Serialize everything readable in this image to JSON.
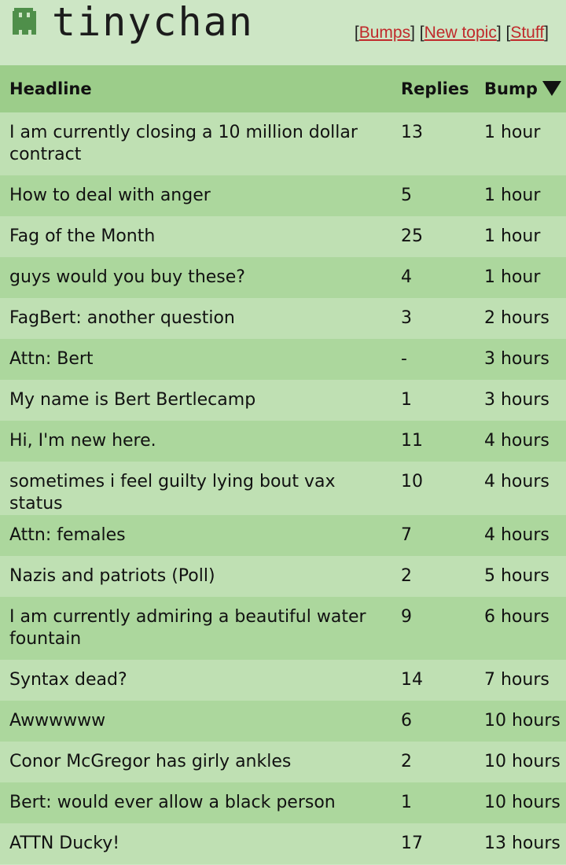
{
  "header": {
    "logo_text": "tinychan",
    "nav": [
      {
        "label": "Bumps"
      },
      {
        "label": "New topic"
      },
      {
        "label": "Stuff"
      }
    ]
  },
  "table": {
    "columns": {
      "headline": "Headline",
      "replies": "Replies",
      "bump": "Bump"
    },
    "rows": [
      {
        "headline": "I am currently closing a 10 million dollar contract",
        "replies": "13",
        "bump": "1 hour"
      },
      {
        "headline": "How to deal with anger",
        "replies": "5",
        "bump": "1 hour"
      },
      {
        "headline": "Fag of the Month",
        "replies": "25",
        "bump": "1 hour"
      },
      {
        "headline": "guys would you buy these?",
        "replies": "4",
        "bump": "1 hour"
      },
      {
        "headline": "FagBert: another question",
        "replies": "3",
        "bump": "2 hours"
      },
      {
        "headline": "Attn: Bert",
        "replies": "-",
        "bump": "3 hours"
      },
      {
        "headline": "My name is Bert Bertlecamp",
        "replies": "1",
        "bump": "3 hours"
      },
      {
        "headline": "Hi, I'm new here.",
        "replies": "11",
        "bump": "4 hours"
      },
      {
        "headline": "sometimes i feel guilty lying bout vax status",
        "replies": "10",
        "bump": "4 hours"
      },
      {
        "headline": "Attn: females",
        "replies": "7",
        "bump": "4 hours"
      },
      {
        "headline": "Nazis and patriots (Poll)",
        "replies": "2",
        "bump": "5 hours"
      },
      {
        "headline": "I am currently admiring a beautiful water fountain",
        "replies": "9",
        "bump": "6 hours"
      },
      {
        "headline": "Syntax dead?",
        "replies": "14",
        "bump": "7 hours"
      },
      {
        "headline": "Awwwwww",
        "replies": "6",
        "bump": "10 hours"
      },
      {
        "headline": "Conor McGregor has girly ankles",
        "replies": "2",
        "bump": "10 hours"
      },
      {
        "headline": "Bert: would ever allow a black person",
        "replies": "1",
        "bump": "10 hours"
      },
      {
        "headline": "ATTN Ducky!",
        "replies": "17",
        "bump": "13 hours"
      }
    ]
  },
  "colors": {
    "background": "#cde6c5",
    "header_row": "#9ccd8a",
    "row_light": "#bfe0b3",
    "row_dark": "#acd79d",
    "link": "#c0292b"
  }
}
